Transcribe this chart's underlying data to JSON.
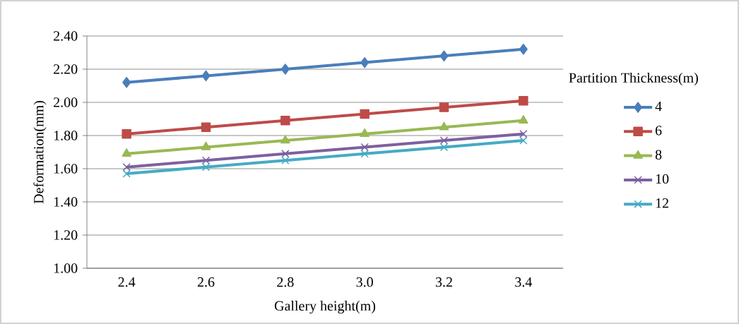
{
  "chart_data": {
    "type": "line",
    "xlabel": "Gallery height(m)",
    "ylabel": "Deformation(mm)",
    "legend_title": "Partition Thickness(m)",
    "categories": [
      "2.4",
      "2.6",
      "2.8",
      "3.0",
      "3.2",
      "3.4"
    ],
    "series": [
      {
        "name": "4",
        "color": "#4a7ebb",
        "marker": "diamond",
        "values": [
          2.12,
          2.16,
          2.2,
          2.24,
          2.28,
          2.32
        ]
      },
      {
        "name": "6",
        "color": "#be4b48",
        "marker": "square",
        "values": [
          1.81,
          1.85,
          1.89,
          1.93,
          1.97,
          2.01
        ]
      },
      {
        "name": "8",
        "color": "#98b954",
        "marker": "triangle",
        "values": [
          1.69,
          1.73,
          1.77,
          1.81,
          1.85,
          1.89
        ]
      },
      {
        "name": "10",
        "color": "#7d60a0",
        "marker": "cross",
        "values": [
          1.61,
          1.65,
          1.69,
          1.73,
          1.77,
          1.81
        ]
      },
      {
        "name": "12",
        "color": "#46aac5",
        "marker": "cross",
        "values": [
          1.57,
          1.61,
          1.65,
          1.69,
          1.73,
          1.77
        ]
      }
    ],
    "ylim": [
      1.0,
      2.4
    ],
    "yticks": [
      {
        "value": 1.0,
        "label": "1.00"
      },
      {
        "value": 1.2,
        "label": "1.20"
      },
      {
        "value": 1.4,
        "label": "1.40"
      },
      {
        "value": 1.6,
        "label": "1.60"
      },
      {
        "value": 1.8,
        "label": "1.80"
      },
      {
        "value": 2.0,
        "label": "2.00"
      },
      {
        "value": 2.2,
        "label": "2.20"
      },
      {
        "value": 2.4,
        "label": "2.40"
      }
    ],
    "grid": "y",
    "legend": "right",
    "line_style": "solid"
  }
}
